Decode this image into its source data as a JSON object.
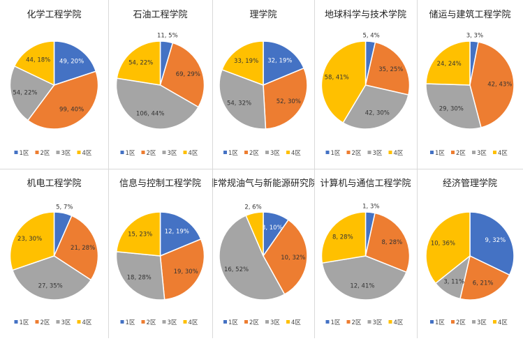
{
  "chart_data": [
    {
      "type": "pie",
      "title": "化学工程学院",
      "categories": [
        "1区",
        "2区",
        "3区",
        "4区"
      ],
      "values": [
        49,
        99,
        54,
        44
      ],
      "labels": [
        "49, 20%",
        "99, 40%",
        "54, 22%",
        "44, 18%"
      ]
    },
    {
      "type": "pie",
      "title": "石油工程学院",
      "categories": [
        "1区",
        "2区",
        "3区",
        "4区"
      ],
      "values": [
        11,
        69,
        106,
        54
      ],
      "labels": [
        "11, 5%",
        "69, 29%",
        "106, 44%",
        "54, 22%"
      ]
    },
    {
      "type": "pie",
      "title": "理学院",
      "categories": [
        "1区",
        "2区",
        "3区",
        "4区"
      ],
      "values": [
        32,
        52,
        54,
        33
      ],
      "labels": [
        "32, 19%",
        "52, 30%",
        "54, 32%",
        "33, 19%"
      ]
    },
    {
      "type": "pie",
      "title": "地球科学与技术学院",
      "categories": [
        "1区",
        "2区",
        "3区",
        "4区"
      ],
      "values": [
        5,
        35,
        42,
        58
      ],
      "labels": [
        "5, 4%",
        "35, 25%",
        "42, 30%",
        "58, 41%"
      ]
    },
    {
      "type": "pie",
      "title": "储运与建筑工程学院",
      "categories": [
        "1区",
        "2区",
        "3区",
        "4区"
      ],
      "values": [
        3,
        42,
        29,
        24
      ],
      "labels": [
        "3, 3%",
        "42, 43%",
        "29, 30%",
        "24, 24%"
      ]
    },
    {
      "type": "pie",
      "title": "机电工程学院",
      "categories": [
        "1区",
        "2区",
        "3区",
        "4区"
      ],
      "values": [
        5,
        21,
        27,
        23
      ],
      "labels": [
        "5, 7%",
        "21, 28%",
        "27, 35%",
        "23, 30%"
      ]
    },
    {
      "type": "pie",
      "title": "信息与控制工程学院",
      "categories": [
        "1区",
        "2区",
        "3区",
        "4区"
      ],
      "values": [
        12,
        19,
        18,
        15
      ],
      "labels": [
        "12, 19%",
        "19, 30%",
        "18, 28%",
        "15, 23%"
      ]
    },
    {
      "type": "pie",
      "title": "非常规油气与新能源研究院",
      "categories": [
        "1区",
        "2区",
        "3区",
        "4区"
      ],
      "values": [
        3,
        10,
        16,
        2
      ],
      "labels": [
        "3, 10%",
        "10, 32%",
        "16, 52%",
        "2, 6%"
      ]
    },
    {
      "type": "pie",
      "title": "计算机与通信工程学院",
      "categories": [
        "1区",
        "2区",
        "3区",
        "4区"
      ],
      "values": [
        1,
        8,
        12,
        8
      ],
      "labels": [
        "1, 3%",
        "8, 28%",
        "12, 41%",
        "8, 28%"
      ]
    },
    {
      "type": "pie",
      "title": "经济管理学院",
      "categories": [
        "1区",
        "2区",
        "3区",
        "4区"
      ],
      "values": [
        9,
        6,
        3,
        10
      ],
      "labels": [
        "9, 32%",
        "6, 21%",
        "3, 11%",
        "10, 36%"
      ]
    }
  ],
  "colors": [
    "#4472c4",
    "#ed7d31",
    "#a5a5a5",
    "#ffc000"
  ],
  "legend_position": "bottom"
}
